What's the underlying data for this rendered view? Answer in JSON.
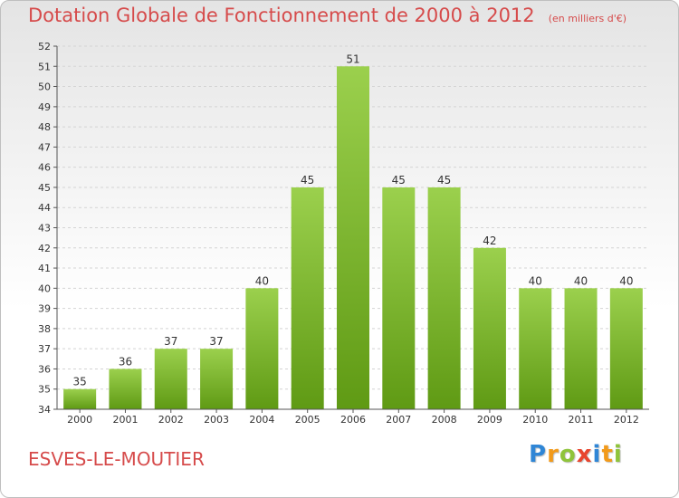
{
  "chart_data": {
    "type": "bar",
    "title": "Dotation Globale de Fonctionnement de 2000 à 2012",
    "unit_note": "(en milliers d'€)",
    "categories": [
      "2000",
      "2001",
      "2002",
      "2003",
      "2004",
      "2005",
      "2006",
      "2007",
      "2008",
      "2009",
      "2010",
      "2011",
      "2012"
    ],
    "values": [
      35,
      36,
      37,
      37,
      40,
      45,
      51,
      45,
      45,
      42,
      40,
      40,
      40
    ],
    "ylim": [
      34,
      52
    ],
    "yticks": [
      34,
      35,
      36,
      37,
      38,
      39,
      40,
      41,
      42,
      43,
      44,
      45,
      46,
      47,
      48,
      49,
      50,
      51,
      52
    ],
    "grid": true,
    "bar_color_top": "#9bd04d",
    "bar_color_bottom": "#5f9a14"
  },
  "commune": "ESVES-LE-MOUTIER",
  "logo": {
    "letters": [
      "P",
      "r",
      "o",
      "x",
      "i",
      "t",
      "i"
    ],
    "colors": [
      "#2f86d6",
      "#f29a1a",
      "#8fc43b",
      "#e8452e",
      "#2f86d6",
      "#f29a1a",
      "#8fc43b"
    ]
  },
  "colors": {
    "title": "#d64b4b",
    "grid": "#d4d4d4",
    "axis": "#555555"
  }
}
